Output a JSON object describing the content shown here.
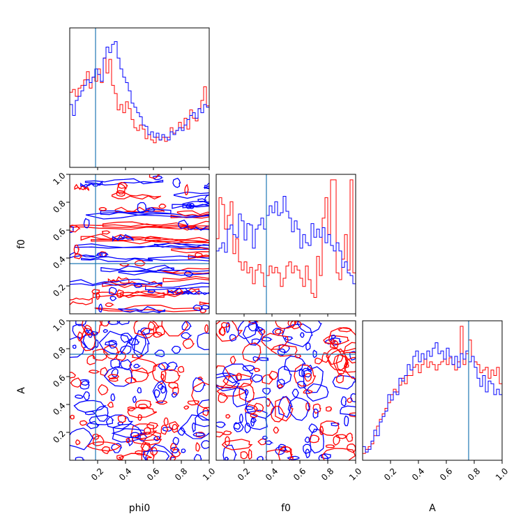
{
  "chart_data": {
    "type": "corner",
    "parameters": [
      "phi0",
      "f0",
      "A"
    ],
    "truths": {
      "phi0": 0.185,
      "f0": 0.36,
      "A": 0.76
    },
    "range": [
      0,
      1
    ],
    "ticks": [
      0.2,
      0.4,
      0.6,
      0.8,
      1.0
    ],
    "tick_labels": [
      "0.2",
      "0.4",
      "0.6",
      "0.8",
      "1.0"
    ],
    "colors": {
      "series_a": "#ff0000",
      "series_b": "#0000ff",
      "truth": "#1f77b4"
    },
    "histograms": {
      "phi0": {
        "red": [
          0.55,
          0.57,
          0.52,
          0.58,
          0.6,
          0.64,
          0.7,
          0.58,
          0.66,
          0.63,
          0.72,
          0.62,
          0.8,
          0.69,
          0.79,
          0.6,
          0.54,
          0.42,
          0.46,
          0.4,
          0.48,
          0.43,
          0.35,
          0.29,
          0.27,
          0.31,
          0.28,
          0.21,
          0.24,
          0.2,
          0.18,
          0.22,
          0.2,
          0.22,
          0.19,
          0.22,
          0.29,
          0.25,
          0.27,
          0.33,
          0.29,
          0.36,
          0.28,
          0.42,
          0.36,
          0.34,
          0.43,
          0.49,
          0.59,
          0.45
        ],
        "blue": [
          0.46,
          0.38,
          0.49,
          0.52,
          0.56,
          0.6,
          0.64,
          0.62,
          0.66,
          0.72,
          0.68,
          0.63,
          0.8,
          0.88,
          0.84,
          0.9,
          0.92,
          0.8,
          0.72,
          0.66,
          0.62,
          0.56,
          0.47,
          0.44,
          0.4,
          0.37,
          0.31,
          0.3,
          0.24,
          0.26,
          0.22,
          0.25,
          0.2,
          0.24,
          0.22,
          0.2,
          0.26,
          0.24,
          0.27,
          0.29,
          0.27,
          0.31,
          0.35,
          0.38,
          0.4,
          0.36,
          0.43,
          0.4,
          0.46,
          0.44
        ]
      },
      "f0": {
        "red": [
          0.55,
          0.85,
          0.8,
          0.62,
          0.72,
          0.82,
          0.44,
          0.55,
          0.38,
          0.32,
          0.38,
          0.3,
          0.34,
          0.22,
          0.32,
          0.36,
          0.3,
          0.2,
          0.28,
          0.35,
          0.3,
          0.34,
          0.3,
          0.2,
          0.26,
          0.35,
          0.38,
          0.3,
          0.35,
          0.32,
          0.26,
          0.2,
          0.35,
          0.25,
          0.15,
          0.12,
          0.42,
          0.28,
          0.7,
          0.85,
          0.58,
          0.98,
          0.98,
          0.3,
          0.25,
          0.4,
          0.58,
          0.32,
          0.98,
          0.3
        ],
        "blue": [
          0.46,
          0.48,
          0.52,
          0.45,
          0.62,
          0.65,
          0.58,
          0.56,
          0.73,
          0.68,
          0.54,
          0.66,
          0.65,
          0.48,
          0.62,
          0.65,
          0.7,
          0.62,
          0.72,
          0.79,
          0.74,
          0.82,
          0.72,
          0.74,
          0.86,
          0.75,
          0.7,
          0.6,
          0.68,
          0.62,
          0.48,
          0.58,
          0.52,
          0.5,
          0.66,
          0.56,
          0.62,
          0.56,
          0.63,
          0.52,
          0.58,
          0.5,
          0.46,
          0.52,
          0.46,
          0.34,
          0.38,
          0.3,
          0.28,
          0.22
        ]
      },
      "A": {
        "red": [
          0.05,
          0.08,
          0.1,
          0.12,
          0.18,
          0.25,
          0.3,
          0.34,
          0.38,
          0.42,
          0.48,
          0.52,
          0.5,
          0.55,
          0.6,
          0.56,
          0.62,
          0.62,
          0.68,
          0.7,
          0.64,
          0.7,
          0.74,
          0.68,
          0.72,
          0.7,
          0.66,
          0.7,
          0.72,
          0.74,
          0.7,
          0.75,
          0.7,
          0.66,
          0.72,
          0.98,
          0.7,
          0.78,
          0.88,
          0.76,
          0.72,
          0.7,
          0.64,
          0.66,
          0.68,
          0.6,
          0.66,
          0.62,
          0.68,
          0.56
        ],
        "blue": [
          0.1,
          0.06,
          0.08,
          0.14,
          0.22,
          0.18,
          0.28,
          0.32,
          0.36,
          0.48,
          0.44,
          0.5,
          0.48,
          0.6,
          0.58,
          0.62,
          0.7,
          0.66,
          0.76,
          0.8,
          0.72,
          0.78,
          0.74,
          0.8,
          0.76,
          0.82,
          0.86,
          0.78,
          0.8,
          0.74,
          0.82,
          0.76,
          0.7,
          0.76,
          0.68,
          0.78,
          0.74,
          0.8,
          0.72,
          0.76,
          0.68,
          0.6,
          0.54,
          0.62,
          0.5,
          0.58,
          0.56,
          0.48,
          0.52,
          0.48
        ]
      }
    },
    "contours": {
      "f0_vs_phi0": {
        "description_free": true,
        "rings": 46,
        "seed": 11
      },
      "A_vs_phi0": {
        "rings": 150,
        "seed": 23
      },
      "A_vs_f0": {
        "rings": 150,
        "seed": 37
      }
    }
  }
}
